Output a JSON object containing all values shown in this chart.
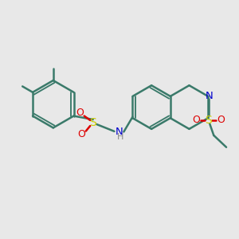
{
  "bg_color": "#e8e8e8",
  "bond_color": "#3a7a6a",
  "N_color": "#0000cc",
  "S_color": "#cccc00",
  "O_color": "#dd0000",
  "line_width": 1.8,
  "dbl_sep": 0.055,
  "fig_w": 3.0,
  "fig_h": 3.0,
  "xlim": [
    0,
    10
  ],
  "ylim": [
    0,
    10
  ]
}
